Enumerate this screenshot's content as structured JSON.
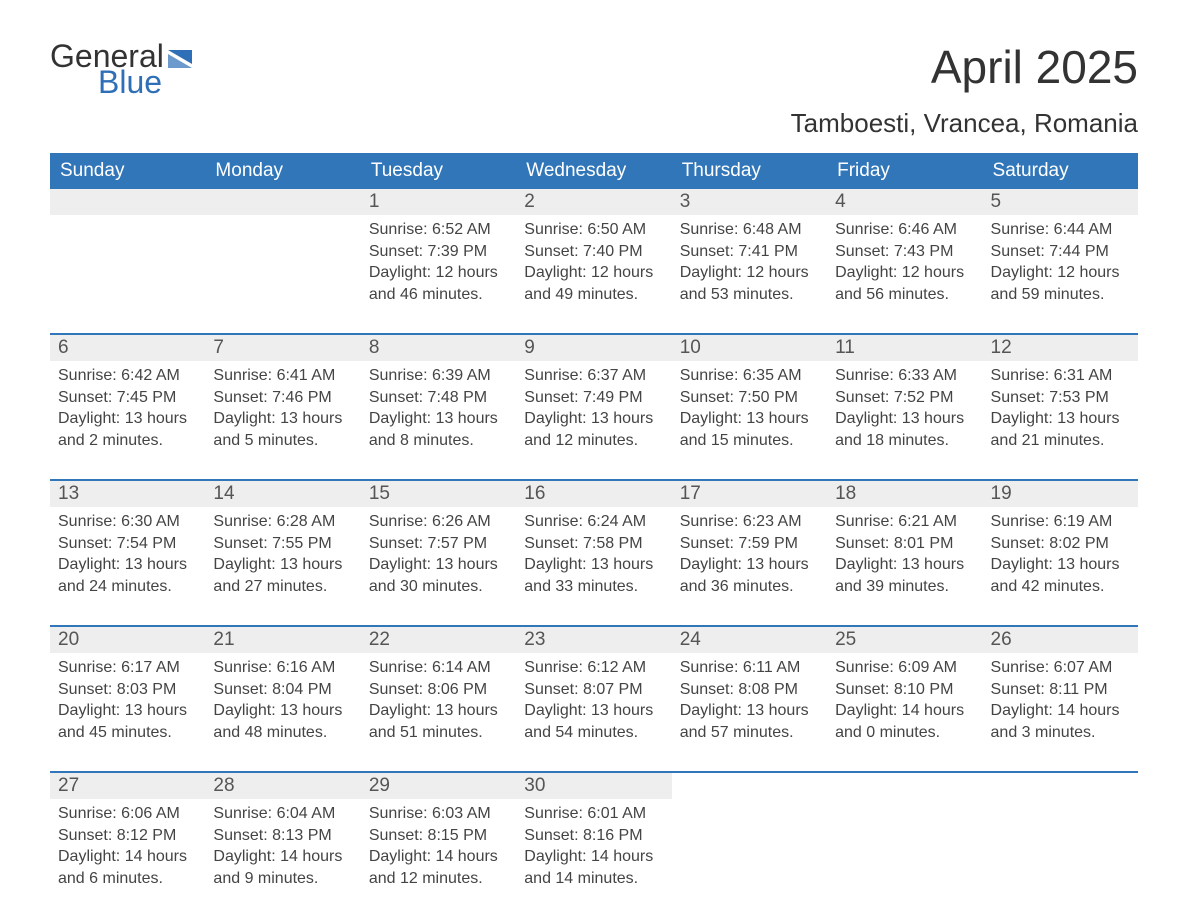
{
  "branding": {
    "logo_top": "General",
    "logo_bottom": "Blue",
    "accent_color": "#2f6fb7"
  },
  "header": {
    "month_title": "April 2025",
    "location": "Tamboesti, Vrancea, Romania"
  },
  "calendar": {
    "header_bg": "#3176b9",
    "header_fg": "#ffffff",
    "daynum_bg": "#eeeeee",
    "day_names": [
      "Sunday",
      "Monday",
      "Tuesday",
      "Wednesday",
      "Thursday",
      "Friday",
      "Saturday"
    ],
    "weeks": [
      [
        {
          "day": "",
          "sunrise": "",
          "sunset": "",
          "daylight_a": "",
          "daylight_b": "",
          "empty": true
        },
        {
          "day": "",
          "sunrise": "",
          "sunset": "",
          "daylight_a": "",
          "daylight_b": "",
          "empty": true
        },
        {
          "day": "1",
          "sunrise": "Sunrise: 6:52 AM",
          "sunset": "Sunset: 7:39 PM",
          "daylight_a": "Daylight: 12 hours",
          "daylight_b": "and 46 minutes."
        },
        {
          "day": "2",
          "sunrise": "Sunrise: 6:50 AM",
          "sunset": "Sunset: 7:40 PM",
          "daylight_a": "Daylight: 12 hours",
          "daylight_b": "and 49 minutes."
        },
        {
          "day": "3",
          "sunrise": "Sunrise: 6:48 AM",
          "sunset": "Sunset: 7:41 PM",
          "daylight_a": "Daylight: 12 hours",
          "daylight_b": "and 53 minutes."
        },
        {
          "day": "4",
          "sunrise": "Sunrise: 6:46 AM",
          "sunset": "Sunset: 7:43 PM",
          "daylight_a": "Daylight: 12 hours",
          "daylight_b": "and 56 minutes."
        },
        {
          "day": "5",
          "sunrise": "Sunrise: 6:44 AM",
          "sunset": "Sunset: 7:44 PM",
          "daylight_a": "Daylight: 12 hours",
          "daylight_b": "and 59 minutes."
        }
      ],
      [
        {
          "day": "6",
          "sunrise": "Sunrise: 6:42 AM",
          "sunset": "Sunset: 7:45 PM",
          "daylight_a": "Daylight: 13 hours",
          "daylight_b": "and 2 minutes."
        },
        {
          "day": "7",
          "sunrise": "Sunrise: 6:41 AM",
          "sunset": "Sunset: 7:46 PM",
          "daylight_a": "Daylight: 13 hours",
          "daylight_b": "and 5 minutes."
        },
        {
          "day": "8",
          "sunrise": "Sunrise: 6:39 AM",
          "sunset": "Sunset: 7:48 PM",
          "daylight_a": "Daylight: 13 hours",
          "daylight_b": "and 8 minutes."
        },
        {
          "day": "9",
          "sunrise": "Sunrise: 6:37 AM",
          "sunset": "Sunset: 7:49 PM",
          "daylight_a": "Daylight: 13 hours",
          "daylight_b": "and 12 minutes."
        },
        {
          "day": "10",
          "sunrise": "Sunrise: 6:35 AM",
          "sunset": "Sunset: 7:50 PM",
          "daylight_a": "Daylight: 13 hours",
          "daylight_b": "and 15 minutes."
        },
        {
          "day": "11",
          "sunrise": "Sunrise: 6:33 AM",
          "sunset": "Sunset: 7:52 PM",
          "daylight_a": "Daylight: 13 hours",
          "daylight_b": "and 18 minutes."
        },
        {
          "day": "12",
          "sunrise": "Sunrise: 6:31 AM",
          "sunset": "Sunset: 7:53 PM",
          "daylight_a": "Daylight: 13 hours",
          "daylight_b": "and 21 minutes."
        }
      ],
      [
        {
          "day": "13",
          "sunrise": "Sunrise: 6:30 AM",
          "sunset": "Sunset: 7:54 PM",
          "daylight_a": "Daylight: 13 hours",
          "daylight_b": "and 24 minutes."
        },
        {
          "day": "14",
          "sunrise": "Sunrise: 6:28 AM",
          "sunset": "Sunset: 7:55 PM",
          "daylight_a": "Daylight: 13 hours",
          "daylight_b": "and 27 minutes."
        },
        {
          "day": "15",
          "sunrise": "Sunrise: 6:26 AM",
          "sunset": "Sunset: 7:57 PM",
          "daylight_a": "Daylight: 13 hours",
          "daylight_b": "and 30 minutes."
        },
        {
          "day": "16",
          "sunrise": "Sunrise: 6:24 AM",
          "sunset": "Sunset: 7:58 PM",
          "daylight_a": "Daylight: 13 hours",
          "daylight_b": "and 33 minutes."
        },
        {
          "day": "17",
          "sunrise": "Sunrise: 6:23 AM",
          "sunset": "Sunset: 7:59 PM",
          "daylight_a": "Daylight: 13 hours",
          "daylight_b": "and 36 minutes."
        },
        {
          "day": "18",
          "sunrise": "Sunrise: 6:21 AM",
          "sunset": "Sunset: 8:01 PM",
          "daylight_a": "Daylight: 13 hours",
          "daylight_b": "and 39 minutes."
        },
        {
          "day": "19",
          "sunrise": "Sunrise: 6:19 AM",
          "sunset": "Sunset: 8:02 PM",
          "daylight_a": "Daylight: 13 hours",
          "daylight_b": "and 42 minutes."
        }
      ],
      [
        {
          "day": "20",
          "sunrise": "Sunrise: 6:17 AM",
          "sunset": "Sunset: 8:03 PM",
          "daylight_a": "Daylight: 13 hours",
          "daylight_b": "and 45 minutes."
        },
        {
          "day": "21",
          "sunrise": "Sunrise: 6:16 AM",
          "sunset": "Sunset: 8:04 PM",
          "daylight_a": "Daylight: 13 hours",
          "daylight_b": "and 48 minutes."
        },
        {
          "day": "22",
          "sunrise": "Sunrise: 6:14 AM",
          "sunset": "Sunset: 8:06 PM",
          "daylight_a": "Daylight: 13 hours",
          "daylight_b": "and 51 minutes."
        },
        {
          "day": "23",
          "sunrise": "Sunrise: 6:12 AM",
          "sunset": "Sunset: 8:07 PM",
          "daylight_a": "Daylight: 13 hours",
          "daylight_b": "and 54 minutes."
        },
        {
          "day": "24",
          "sunrise": "Sunrise: 6:11 AM",
          "sunset": "Sunset: 8:08 PM",
          "daylight_a": "Daylight: 13 hours",
          "daylight_b": "and 57 minutes."
        },
        {
          "day": "25",
          "sunrise": "Sunrise: 6:09 AM",
          "sunset": "Sunset: 8:10 PM",
          "daylight_a": "Daylight: 14 hours",
          "daylight_b": "and 0 minutes."
        },
        {
          "day": "26",
          "sunrise": "Sunrise: 6:07 AM",
          "sunset": "Sunset: 8:11 PM",
          "daylight_a": "Daylight: 14 hours",
          "daylight_b": "and 3 minutes."
        }
      ],
      [
        {
          "day": "27",
          "sunrise": "Sunrise: 6:06 AM",
          "sunset": "Sunset: 8:12 PM",
          "daylight_a": "Daylight: 14 hours",
          "daylight_b": "and 6 minutes."
        },
        {
          "day": "28",
          "sunrise": "Sunrise: 6:04 AM",
          "sunset": "Sunset: 8:13 PM",
          "daylight_a": "Daylight: 14 hours",
          "daylight_b": "and 9 minutes."
        },
        {
          "day": "29",
          "sunrise": "Sunrise: 6:03 AM",
          "sunset": "Sunset: 8:15 PM",
          "daylight_a": "Daylight: 14 hours",
          "daylight_b": "and 12 minutes."
        },
        {
          "day": "30",
          "sunrise": "Sunrise: 6:01 AM",
          "sunset": "Sunset: 8:16 PM",
          "daylight_a": "Daylight: 14 hours",
          "daylight_b": "and 14 minutes."
        },
        {
          "day": "",
          "sunrise": "",
          "sunset": "",
          "daylight_a": "",
          "daylight_b": "",
          "empty": true,
          "nobar": true
        },
        {
          "day": "",
          "sunrise": "",
          "sunset": "",
          "daylight_a": "",
          "daylight_b": "",
          "empty": true,
          "nobar": true
        },
        {
          "day": "",
          "sunrise": "",
          "sunset": "",
          "daylight_a": "",
          "daylight_b": "",
          "empty": true,
          "nobar": true
        }
      ]
    ]
  }
}
